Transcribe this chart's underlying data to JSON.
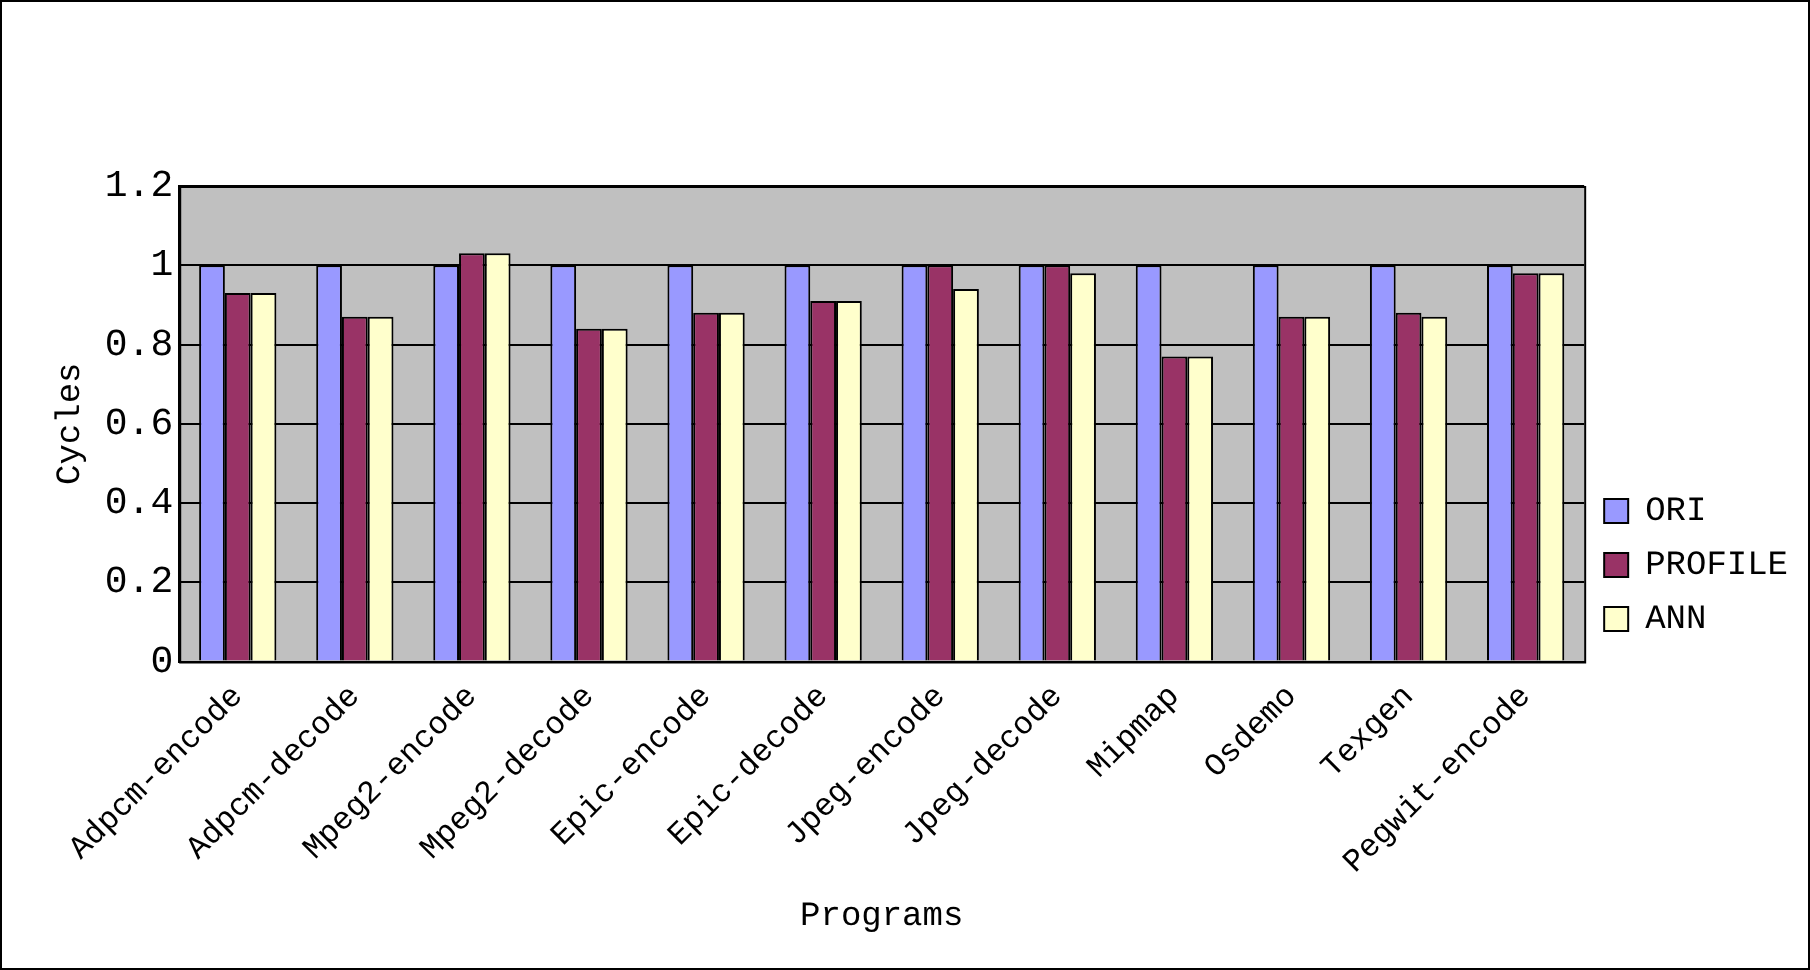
{
  "chart_data": {
    "type": "bar",
    "xlabel": "Programs",
    "ylabel": "Cycles",
    "categories": [
      "Adpcm-encode",
      "Adpcm-decode",
      "Mpeg2-encode",
      "Mpeg2-decode",
      "Epic-encode",
      "Epic-decode",
      "Jpeg-encode",
      "Jpeg-decode",
      "Mipmap",
      "Osdemo",
      "Texgen",
      "Pegwit-encode"
    ],
    "series": [
      {
        "name": "ORI",
        "color": "#9999ff",
        "values": [
          1,
          1,
          1,
          1,
          1,
          1,
          1,
          1,
          1,
          1,
          1,
          1
        ]
      },
      {
        "name": "PROFILE",
        "color": "#993366",
        "values": [
          0.93,
          0.87,
          1.03,
          0.84,
          0.88,
          0.91,
          1,
          1,
          0.77,
          0.87,
          0.88,
          0.98
        ]
      },
      {
        "name": "ANN",
        "color": "#ffffcc",
        "values": [
          0.93,
          0.87,
          1.03,
          0.84,
          0.88,
          0.91,
          0.94,
          0.98,
          0.77,
          0.87,
          0.87,
          0.98
        ]
      }
    ],
    "ylim": [
      0,
      1.2
    ],
    "yticks": [
      0,
      0.2,
      0.4,
      0.6,
      0.8,
      1,
      1.2
    ],
    "grid": "y",
    "legend": "right"
  }
}
